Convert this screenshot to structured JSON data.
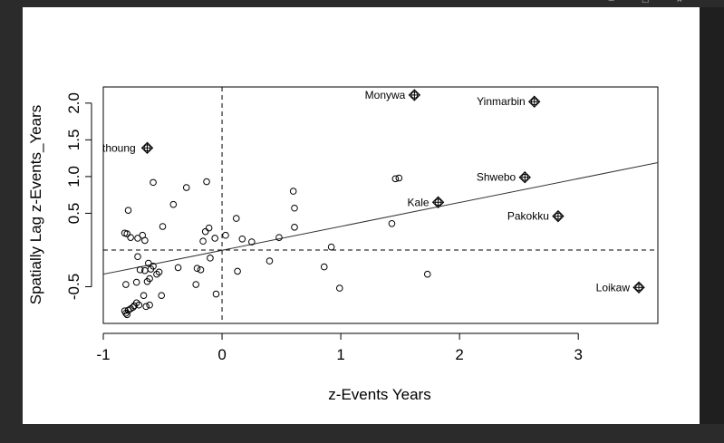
{
  "window": {
    "controls": [
      "–",
      "□",
      "×"
    ]
  },
  "chart_data": {
    "type": "scatter",
    "title": "",
    "xlabel": "z-Events Years",
    "ylabel": "Spatially Lag z-Events_Years",
    "xlim": [
      -1,
      3.67
    ],
    "ylim": [
      -1.0,
      2.22
    ],
    "xticks": [
      -1,
      0,
      1,
      2,
      3
    ],
    "yticks": [
      -0.5,
      0.5,
      1.0,
      1.5,
      2.0
    ],
    "xtick_labels": [
      "-1",
      "0",
      "1",
      "2",
      "3"
    ],
    "ytick_labels": [
      "-0.5",
      "0.5",
      "1.0",
      "1.5",
      "2.0"
    ],
    "grid": false,
    "reference_lines": {
      "vertical_x": 0,
      "horizontal_y": 0,
      "style": "dashed"
    },
    "regression_line": {
      "x": [
        -1,
        3.67
      ],
      "y": [
        -0.33,
        1.19
      ]
    },
    "marker_color": "#000000",
    "points": [
      [
        -0.82,
        -0.83
      ],
      [
        -0.81,
        -0.86
      ],
      [
        -0.8,
        -0.88
      ],
      [
        -0.79,
        -0.82
      ],
      [
        -0.77,
        -0.8
      ],
      [
        -0.75,
        -0.78
      ],
      [
        -0.74,
        -0.76
      ],
      [
        -0.72,
        -0.72
      ],
      [
        -0.7,
        -0.75
      ],
      [
        -0.66,
        -0.62
      ],
      [
        -0.64,
        -0.77
      ],
      [
        -0.61,
        -0.75
      ],
      [
        -0.51,
        -0.62
      ],
      [
        -0.81,
        -0.47
      ],
      [
        -0.72,
        -0.44
      ],
      [
        -0.63,
        -0.43
      ],
      [
        -0.61,
        -0.39
      ],
      [
        -0.55,
        -0.33
      ],
      [
        -0.6,
        -0.26
      ],
      [
        -0.58,
        -0.22
      ],
      [
        -0.53,
        -0.3
      ],
      [
        -0.65,
        -0.28
      ],
      [
        -0.62,
        -0.18
      ],
      [
        -0.71,
        -0.09
      ],
      [
        -0.69,
        -0.27
      ],
      [
        -0.82,
        0.23
      ],
      [
        -0.8,
        0.22
      ],
      [
        -0.77,
        0.17
      ],
      [
        -0.71,
        0.16
      ],
      [
        -0.67,
        0.2
      ],
      [
        -0.65,
        0.13
      ],
      [
        -0.79,
        0.54
      ],
      [
        -0.58,
        0.92
      ],
      [
        -0.5,
        0.32
      ],
      [
        -0.41,
        0.62
      ],
      [
        -0.37,
        -0.24
      ],
      [
        -0.3,
        0.85
      ],
      [
        -0.22,
        -0.47
      ],
      [
        -0.21,
        -0.25
      ],
      [
        -0.18,
        -0.27
      ],
      [
        -0.16,
        0.12
      ],
      [
        -0.14,
        0.25
      ],
      [
        -0.13,
        0.93
      ],
      [
        -0.11,
        0.3
      ],
      [
        -0.1,
        -0.11
      ],
      [
        -0.06,
        0.16
      ],
      [
        -0.05,
        -0.6
      ],
      [
        0.03,
        0.2
      ],
      [
        0.12,
        0.43
      ],
      [
        0.13,
        -0.29
      ],
      [
        0.17,
        0.15
      ],
      [
        0.25,
        0.11
      ],
      [
        0.4,
        -0.15
      ],
      [
        0.48,
        0.17
      ],
      [
        0.6,
        0.8
      ],
      [
        0.61,
        0.57
      ],
      [
        0.61,
        0.31
      ],
      [
        0.86,
        -0.23
      ],
      [
        0.92,
        0.04
      ],
      [
        0.99,
        -0.52
      ],
      [
        1.43,
        0.36
      ],
      [
        1.46,
        0.97
      ],
      [
        1.49,
        0.98
      ],
      [
        1.73,
        -0.33
      ]
    ],
    "labeled_points": [
      {
        "name": "Monywa",
        "x": 1.62,
        "y": 2.11
      },
      {
        "name": "Yinmarbin",
        "x": 2.63,
        "y": 2.02
      },
      {
        "name": "thoung",
        "x": -0.63,
        "y": 1.39
      },
      {
        "name": "Shwebo",
        "x": 2.55,
        "y": 0.99
      },
      {
        "name": "Kale",
        "x": 1.82,
        "y": 0.65
      },
      {
        "name": "Pakokku",
        "x": 2.83,
        "y": 0.46
      },
      {
        "name": "Loikaw",
        "x": 3.51,
        "y": -0.51
      }
    ]
  }
}
